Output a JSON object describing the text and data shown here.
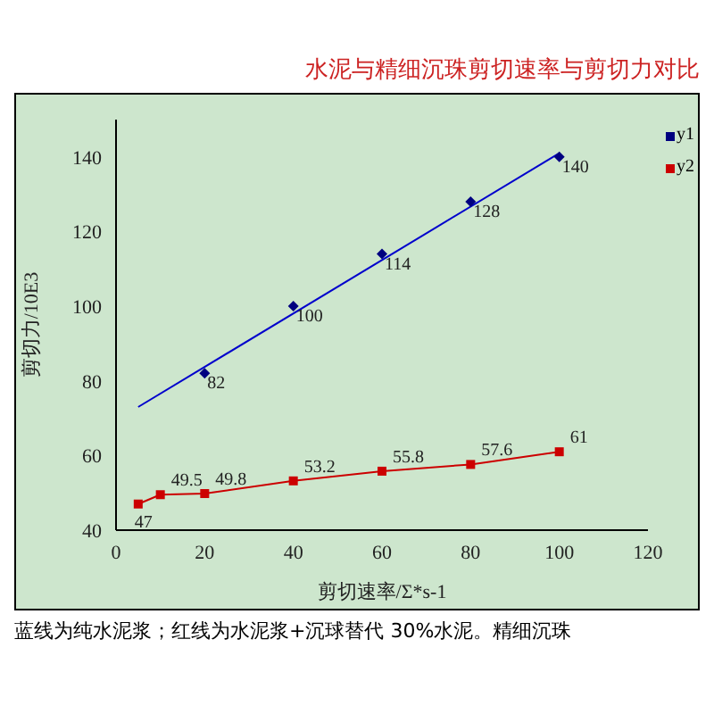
{
  "chart_data": {
    "type": "line",
    "title": "水泥与精细沉珠剪切速率与剪切力对比",
    "xlabel": "剪切速率/Σ*s-1",
    "ylabel": "剪切力/10E3",
    "annotations": [
      "蓝线为纯水泥浆；红线为水泥浆+沉球替代 30%水泥。精细沉珠"
    ],
    "xlim": [
      0,
      120
    ],
    "xticks": [
      0,
      20,
      40,
      60,
      80,
      100,
      120
    ],
    "ylim": [
      40,
      150
    ],
    "yticks": [
      40,
      60,
      80,
      100,
      120,
      140
    ],
    "grid": false,
    "legend": "right",
    "series": [
      {
        "name": "y1",
        "type": "scatter",
        "marker": "diamond",
        "color": "#000080",
        "x": [
          20,
          40,
          60,
          80,
          100
        ],
        "values": [
          82,
          100,
          114,
          128,
          140
        ],
        "value_labels": [
          "82",
          "100",
          "114",
          "128",
          "140"
        ]
      },
      {
        "type": "line",
        "marker": "none",
        "color": "#0000cc",
        "x": [
          5,
          100
        ],
        "values": [
          73,
          141
        ]
      },
      {
        "name": "y2",
        "marker": "square",
        "color": "#cc0000",
        "x": [
          5,
          10,
          20,
          40,
          60,
          80,
          100
        ],
        "values": [
          47,
          49.5,
          49.8,
          53.2,
          55.8,
          57.6,
          61
        ],
        "value_labels": [
          "47",
          "49.5",
          "49.8",
          "53.2",
          "55.8",
          "57.6",
          "61"
        ]
      }
    ]
  }
}
